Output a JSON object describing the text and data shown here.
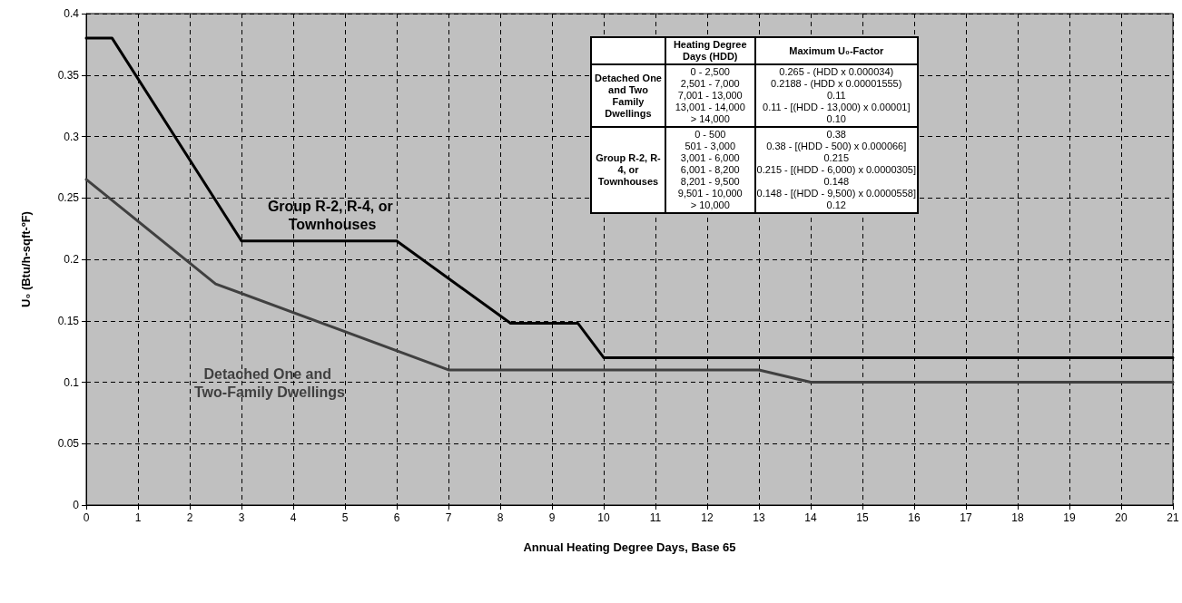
{
  "chart_data": {
    "type": "line",
    "xlabel": "Annual Heating Degree Days, Base 65",
    "ylabel": "U₀ (Btu/h-sqft-ºF)",
    "xlim": [
      0,
      21
    ],
    "xticks": [
      0,
      1,
      2,
      3,
      4,
      5,
      6,
      7,
      8,
      9,
      10,
      11,
      12,
      13,
      14,
      15,
      16,
      17,
      18,
      19,
      20,
      21
    ],
    "ylim": [
      0,
      0.4
    ],
    "yticks": [
      0,
      0.05,
      0.1,
      0.15,
      0.2,
      0.25,
      0.3,
      0.35,
      0.4
    ],
    "grid": true,
    "legend": false,
    "marker": "none",
    "line_style": "solid",
    "series": [
      {
        "name": "Group R-2, R-4, or Townhouses",
        "color": "#000000",
        "x": [
          0,
          0.5,
          3,
          6,
          8.2,
          9.5,
          10,
          21
        ],
        "values": [
          0.38,
          0.38,
          0.215,
          0.215,
          0.148,
          0.148,
          0.12,
          0.12
        ]
      },
      {
        "name": "Detached One and Two-Family Dwellings",
        "color": "#404040",
        "x": [
          0,
          2.5,
          7,
          13,
          14,
          21
        ],
        "values": [
          0.265,
          0.18,
          0.11,
          0.11,
          0.1,
          0.1
        ]
      }
    ],
    "annotations": [
      "Heating Degree Days (HDD)",
      "Maximum U₀-Factor",
      "Detached One and Two Family Dwellings",
      "0 - 2,500\n2,501 - 7,000\n7,001 - 13,000\n13,001 - 14,000\n> 14,000",
      "0.265 - (HDD x 0.000034)\n0.2188 - (HDD x 0.00001555)\n0.11\n0.11 - [(HDD - 13,000) x 0.00001]\n0.10",
      "Group R-2, R-4, or Townhouses",
      "0 - 500\n501 - 3,000\n3,001 - 6,000\n6,001 - 8,200\n8,201 - 9,500\n9,501 - 10,000\n> 10,000",
      "0.38\n0.38 - [(HDD - 500) x 0.000066]\n0.215\n0.215 - [(HDD - 6,000) x 0.0000305]\n0.148\n0.148 - [(HDD - 9,500) x 0.0000558]\n0.12"
    ]
  }
}
